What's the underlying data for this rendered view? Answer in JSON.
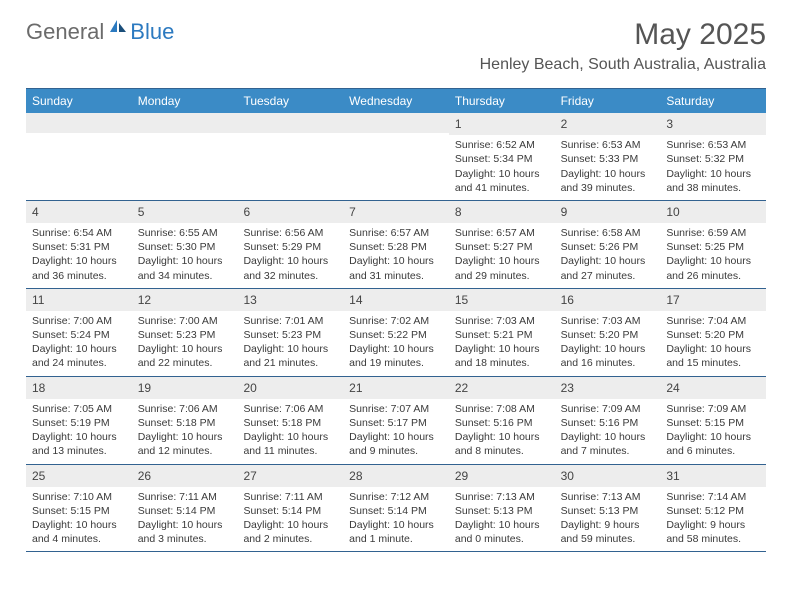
{
  "logo": {
    "general": "General",
    "blue": "Blue"
  },
  "title": "May 2025",
  "location": "Henley Beach, South Australia, Australia",
  "dayHeaders": [
    "Sunday",
    "Monday",
    "Tuesday",
    "Wednesday",
    "Thursday",
    "Friday",
    "Saturday"
  ],
  "colors": {
    "headerBg": "#3b8bc6",
    "borderTop": "#326290",
    "dayNumBg": "#ededed",
    "text": "#3a3a3a"
  },
  "weeks": [
    [
      {
        "empty": true
      },
      {
        "empty": true
      },
      {
        "empty": true
      },
      {
        "empty": true
      },
      {
        "num": "1",
        "sunrise": "Sunrise: 6:52 AM",
        "sunset": "Sunset: 5:34 PM",
        "daylight": "Daylight: 10 hours and 41 minutes."
      },
      {
        "num": "2",
        "sunrise": "Sunrise: 6:53 AM",
        "sunset": "Sunset: 5:33 PM",
        "daylight": "Daylight: 10 hours and 39 minutes."
      },
      {
        "num": "3",
        "sunrise": "Sunrise: 6:53 AM",
        "sunset": "Sunset: 5:32 PM",
        "daylight": "Daylight: 10 hours and 38 minutes."
      }
    ],
    [
      {
        "num": "4",
        "sunrise": "Sunrise: 6:54 AM",
        "sunset": "Sunset: 5:31 PM",
        "daylight": "Daylight: 10 hours and 36 minutes."
      },
      {
        "num": "5",
        "sunrise": "Sunrise: 6:55 AM",
        "sunset": "Sunset: 5:30 PM",
        "daylight": "Daylight: 10 hours and 34 minutes."
      },
      {
        "num": "6",
        "sunrise": "Sunrise: 6:56 AM",
        "sunset": "Sunset: 5:29 PM",
        "daylight": "Daylight: 10 hours and 32 minutes."
      },
      {
        "num": "7",
        "sunrise": "Sunrise: 6:57 AM",
        "sunset": "Sunset: 5:28 PM",
        "daylight": "Daylight: 10 hours and 31 minutes."
      },
      {
        "num": "8",
        "sunrise": "Sunrise: 6:57 AM",
        "sunset": "Sunset: 5:27 PM",
        "daylight": "Daylight: 10 hours and 29 minutes."
      },
      {
        "num": "9",
        "sunrise": "Sunrise: 6:58 AM",
        "sunset": "Sunset: 5:26 PM",
        "daylight": "Daylight: 10 hours and 27 minutes."
      },
      {
        "num": "10",
        "sunrise": "Sunrise: 6:59 AM",
        "sunset": "Sunset: 5:25 PM",
        "daylight": "Daylight: 10 hours and 26 minutes."
      }
    ],
    [
      {
        "num": "11",
        "sunrise": "Sunrise: 7:00 AM",
        "sunset": "Sunset: 5:24 PM",
        "daylight": "Daylight: 10 hours and 24 minutes."
      },
      {
        "num": "12",
        "sunrise": "Sunrise: 7:00 AM",
        "sunset": "Sunset: 5:23 PM",
        "daylight": "Daylight: 10 hours and 22 minutes."
      },
      {
        "num": "13",
        "sunrise": "Sunrise: 7:01 AM",
        "sunset": "Sunset: 5:23 PM",
        "daylight": "Daylight: 10 hours and 21 minutes."
      },
      {
        "num": "14",
        "sunrise": "Sunrise: 7:02 AM",
        "sunset": "Sunset: 5:22 PM",
        "daylight": "Daylight: 10 hours and 19 minutes."
      },
      {
        "num": "15",
        "sunrise": "Sunrise: 7:03 AM",
        "sunset": "Sunset: 5:21 PM",
        "daylight": "Daylight: 10 hours and 18 minutes."
      },
      {
        "num": "16",
        "sunrise": "Sunrise: 7:03 AM",
        "sunset": "Sunset: 5:20 PM",
        "daylight": "Daylight: 10 hours and 16 minutes."
      },
      {
        "num": "17",
        "sunrise": "Sunrise: 7:04 AM",
        "sunset": "Sunset: 5:20 PM",
        "daylight": "Daylight: 10 hours and 15 minutes."
      }
    ],
    [
      {
        "num": "18",
        "sunrise": "Sunrise: 7:05 AM",
        "sunset": "Sunset: 5:19 PM",
        "daylight": "Daylight: 10 hours and 13 minutes."
      },
      {
        "num": "19",
        "sunrise": "Sunrise: 7:06 AM",
        "sunset": "Sunset: 5:18 PM",
        "daylight": "Daylight: 10 hours and 12 minutes."
      },
      {
        "num": "20",
        "sunrise": "Sunrise: 7:06 AM",
        "sunset": "Sunset: 5:18 PM",
        "daylight": "Daylight: 10 hours and 11 minutes."
      },
      {
        "num": "21",
        "sunrise": "Sunrise: 7:07 AM",
        "sunset": "Sunset: 5:17 PM",
        "daylight": "Daylight: 10 hours and 9 minutes."
      },
      {
        "num": "22",
        "sunrise": "Sunrise: 7:08 AM",
        "sunset": "Sunset: 5:16 PM",
        "daylight": "Daylight: 10 hours and 8 minutes."
      },
      {
        "num": "23",
        "sunrise": "Sunrise: 7:09 AM",
        "sunset": "Sunset: 5:16 PM",
        "daylight": "Daylight: 10 hours and 7 minutes."
      },
      {
        "num": "24",
        "sunrise": "Sunrise: 7:09 AM",
        "sunset": "Sunset: 5:15 PM",
        "daylight": "Daylight: 10 hours and 6 minutes."
      }
    ],
    [
      {
        "num": "25",
        "sunrise": "Sunrise: 7:10 AM",
        "sunset": "Sunset: 5:15 PM",
        "daylight": "Daylight: 10 hours and 4 minutes."
      },
      {
        "num": "26",
        "sunrise": "Sunrise: 7:11 AM",
        "sunset": "Sunset: 5:14 PM",
        "daylight": "Daylight: 10 hours and 3 minutes."
      },
      {
        "num": "27",
        "sunrise": "Sunrise: 7:11 AM",
        "sunset": "Sunset: 5:14 PM",
        "daylight": "Daylight: 10 hours and 2 minutes."
      },
      {
        "num": "28",
        "sunrise": "Sunrise: 7:12 AM",
        "sunset": "Sunset: 5:14 PM",
        "daylight": "Daylight: 10 hours and 1 minute."
      },
      {
        "num": "29",
        "sunrise": "Sunrise: 7:13 AM",
        "sunset": "Sunset: 5:13 PM",
        "daylight": "Daylight: 10 hours and 0 minutes."
      },
      {
        "num": "30",
        "sunrise": "Sunrise: 7:13 AM",
        "sunset": "Sunset: 5:13 PM",
        "daylight": "Daylight: 9 hours and 59 minutes."
      },
      {
        "num": "31",
        "sunrise": "Sunrise: 7:14 AM",
        "sunset": "Sunset: 5:12 PM",
        "daylight": "Daylight: 9 hours and 58 minutes."
      }
    ]
  ]
}
